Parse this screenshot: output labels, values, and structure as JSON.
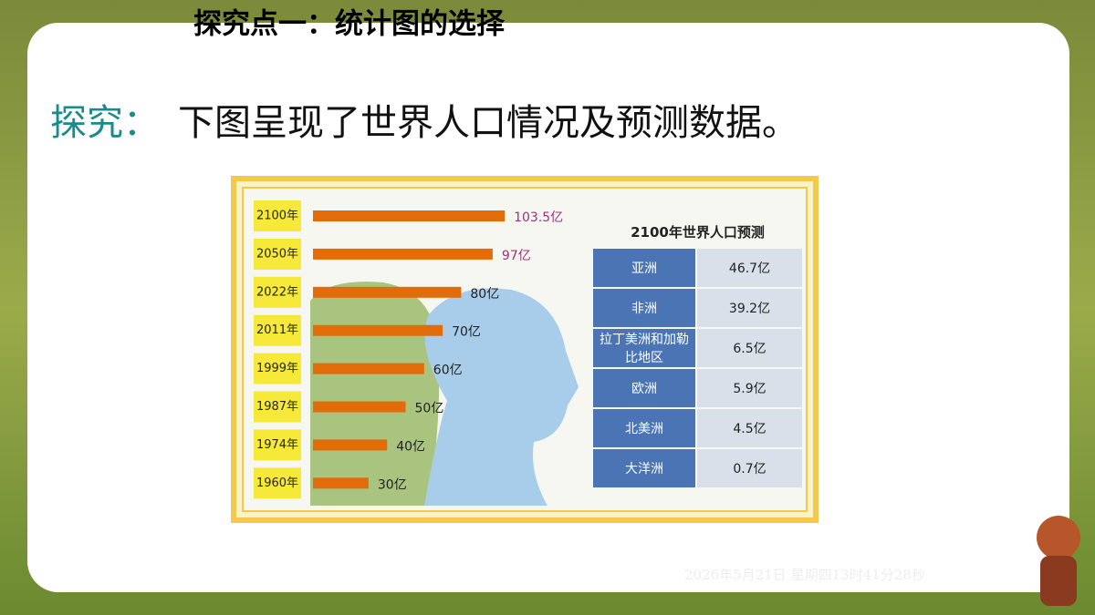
{
  "header": {
    "title": "探究点一：统计图的选择",
    "prompt_label": "探究：",
    "prompt_text": "下图呈现了世界人口情况及预测数据。"
  },
  "chart_data": {
    "type": "bar",
    "orientation": "horizontal",
    "color": "#e36c0a",
    "categories": [
      "2100年",
      "2050年",
      "2022年",
      "2011年",
      "1999年",
      "1987年",
      "1974年",
      "1960年"
    ],
    "values": [
      103.5,
      97,
      80,
      70,
      60,
      50,
      40,
      30
    ],
    "value_labels": [
      "103.5亿",
      "97亿",
      "80亿",
      "70亿",
      "60亿",
      "50亿",
      "40亿",
      "30亿"
    ]
  },
  "table": {
    "title": "2100年世界人口预测",
    "rows": [
      [
        "亚洲",
        "46.7亿"
      ],
      [
        "非洲",
        "39.2亿"
      ],
      [
        "拉丁美洲和加勒比地区",
        "6.5亿"
      ],
      [
        "欧洲",
        "5.9亿"
      ],
      [
        "北美洲",
        "4.5亿"
      ],
      [
        "大洋洲",
        "0.7亿"
      ]
    ]
  },
  "footer": {
    "timestamp": "2026年5月21日 星期四13时41分28秒"
  }
}
